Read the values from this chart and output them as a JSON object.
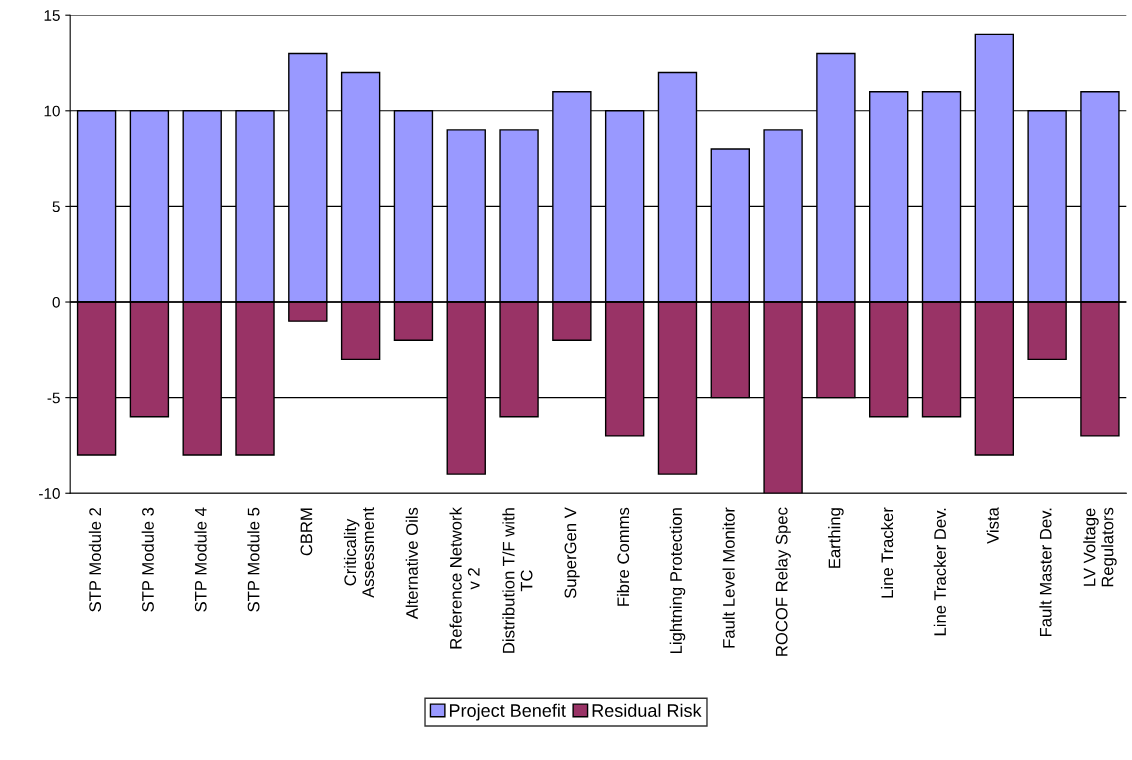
{
  "chart_data": {
    "type": "bar",
    "stacked": true,
    "categories": [
      "STP Module 2",
      "STP Module 3",
      "STP Module 4",
      "STP Module 5",
      "CBRM",
      "Criticality\nAssessment",
      "Alternative Oils",
      "Reference Network\nv 2",
      "Distribution T/F with\nTC",
      "SuperGen V",
      "Fibre Comms",
      "Lightning Protection",
      "Fault Level Monitor",
      "ROCOF Relay Spec",
      "Earthing",
      "Line Tracker",
      "Line Tracker Dev.",
      "Vista",
      "Fault Master Dev.",
      "LV Voltage\nRegulators"
    ],
    "series": [
      {
        "name": "Project Benefit",
        "color": "#9999ff",
        "values": [
          10,
          10,
          10,
          10,
          13,
          12,
          10,
          9,
          9,
          11,
          10,
          12,
          8,
          9,
          13,
          11,
          11,
          14,
          10,
          11
        ]
      },
      {
        "name": "Residual Risk",
        "color": "#993366",
        "values": [
          -8,
          -6,
          -8,
          -8,
          -1,
          -3,
          -2,
          -9,
          -6,
          -2,
          -7,
          -9,
          -5,
          -10,
          -5,
          -6,
          -6,
          -8,
          -3,
          -7
        ]
      }
    ],
    "ylim": [
      -10,
      15
    ],
    "yticks": [
      -10,
      -5,
      0,
      5,
      10,
      15
    ],
    "grid": "y",
    "legend": "bottom"
  }
}
